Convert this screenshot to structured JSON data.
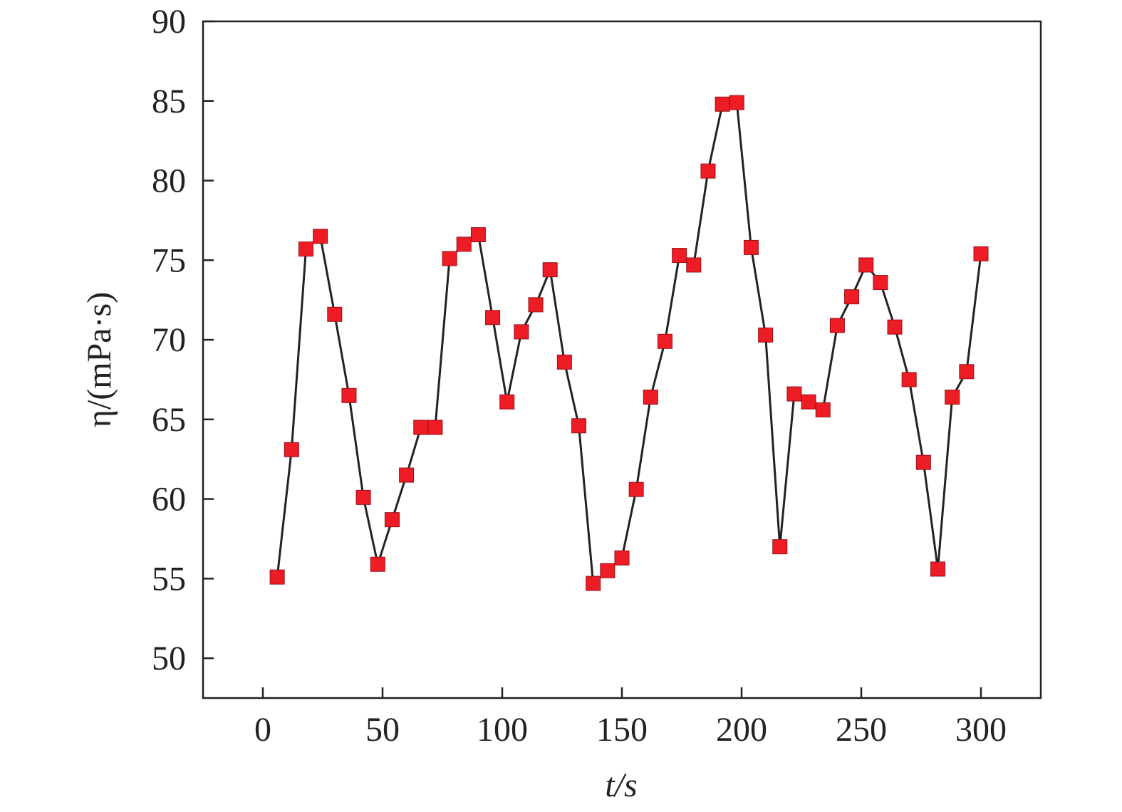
{
  "chart_data": {
    "type": "line",
    "x_label": "t/s",
    "y_label": "η/(mPa·s)",
    "xlim": [
      -25,
      325
    ],
    "xticks": [
      0,
      50,
      100,
      150,
      200,
      250,
      300
    ],
    "ylim": [
      47.5,
      90
    ],
    "yticks": [
      50,
      55,
      60,
      65,
      70,
      75,
      80,
      85,
      90
    ],
    "line_color": "#222222",
    "marker_color": "#ee1c25",
    "x": [
      6,
      12,
      18,
      24,
      30,
      36,
      42,
      48,
      54,
      60,
      66,
      72,
      78,
      84,
      90,
      96,
      102,
      108,
      114,
      120,
      126,
      132,
      138,
      144,
      150,
      156,
      162,
      168,
      174,
      180,
      186,
      192,
      198,
      204,
      210,
      216,
      222,
      228,
      234,
      240,
      246,
      252,
      258,
      264,
      270,
      276,
      282,
      288,
      294,
      300
    ],
    "values": [
      55.1,
      63.1,
      75.7,
      76.5,
      71.6,
      66.5,
      60.1,
      55.9,
      58.7,
      61.5,
      64.5,
      64.5,
      75.1,
      76.0,
      76.6,
      71.4,
      66.1,
      70.5,
      72.2,
      74.4,
      68.6,
      64.6,
      54.7,
      55.5,
      56.3,
      60.6,
      66.4,
      69.9,
      75.3,
      74.7,
      80.6,
      84.8,
      84.9,
      75.8,
      70.3,
      57.0,
      66.6,
      66.1,
      65.6,
      70.9,
      72.7,
      74.7,
      73.6,
      70.8,
      67.5,
      62.3,
      55.6,
      66.4,
      68.0,
      75.4
    ]
  }
}
